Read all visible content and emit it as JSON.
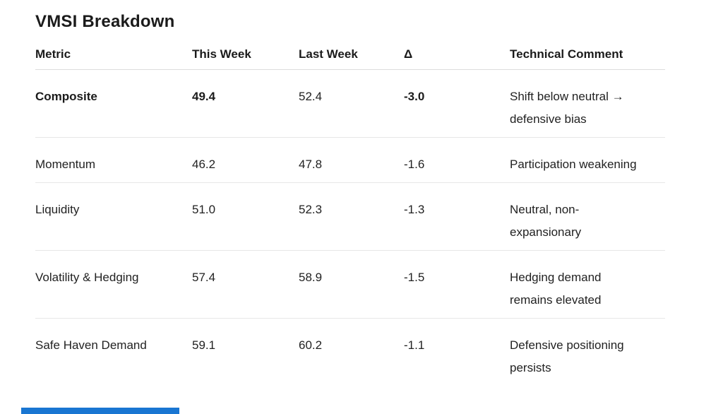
{
  "page": {
    "title": "VMSI Breakdown"
  },
  "table": {
    "columns": [
      "Metric",
      "This Week",
      "Last Week",
      "Δ",
      "Technical Comment"
    ],
    "rows": [
      {
        "metric": "Composite",
        "this_week": "49.4",
        "last_week": "52.4",
        "delta": "-3.0",
        "comment_lines": [
          "Shift below neutral →",
          "defensive bias"
        ]
      },
      {
        "metric": "Momentum",
        "this_week": "46.2",
        "last_week": "47.8",
        "delta": "-1.6",
        "comment_lines": [
          "Participation weakening"
        ]
      },
      {
        "metric": "Liquidity",
        "this_week": "51.0",
        "last_week": "52.3",
        "delta": "-1.3",
        "comment_lines": [
          "Neutral, non-",
          "expansionary"
        ]
      },
      {
        "metric": "Volatility & Hedging",
        "this_week": "57.4",
        "last_week": "58.9",
        "delta": "-1.5",
        "comment_lines": [
          "Hedging demand",
          "remains elevated"
        ]
      },
      {
        "metric": "Safe Haven Demand",
        "this_week": "59.1",
        "last_week": "60.2",
        "delta": "-1.1",
        "comment_lines": [
          "Defensive positioning",
          "persists"
        ]
      }
    ]
  },
  "scrollbar": {
    "color": "#1976d2"
  },
  "colors": {
    "text": "#222222",
    "heading": "#1b1b1b",
    "row_border": "#e7e7e7",
    "header_border": "#dcdcdc",
    "background": "#ffffff"
  }
}
